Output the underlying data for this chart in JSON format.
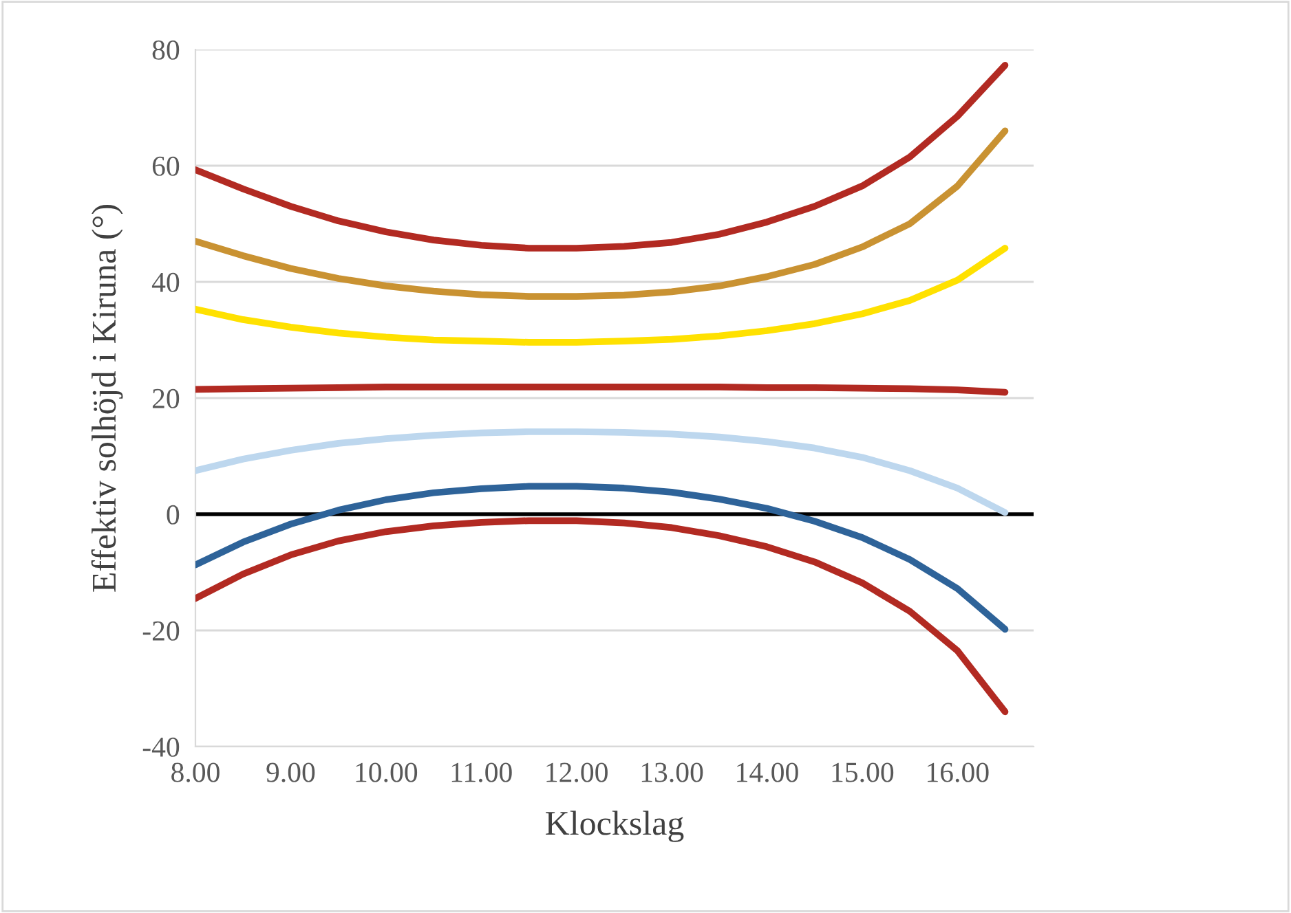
{
  "chart_data": {
    "type": "line",
    "xlabel": "Klockslag",
    "ylabel": "Effektiv solhöjd i Kiruna (°)",
    "x": [
      8,
      8.5,
      9,
      9.5,
      10,
      10.5,
      11,
      11.5,
      12,
      12.5,
      13,
      13.5,
      14,
      14.5,
      15,
      15.5,
      16,
      16.5
    ],
    "series": [
      {
        "color": "#b22a22",
        "values": [
          59.3,
          56,
          53,
          50.5,
          48.6,
          47.2,
          46.3,
          45.8,
          45.8,
          46.1,
          46.8,
          48.2,
          50.3,
          53,
          56.5,
          61.5,
          68.5,
          77.3
        ]
      },
      {
        "color": "#c99232",
        "values": [
          47,
          44.5,
          42.3,
          40.6,
          39.3,
          38.4,
          37.8,
          37.5,
          37.5,
          37.7,
          38.3,
          39.3,
          40.9,
          43,
          46,
          50,
          56.5,
          66
        ]
      },
      {
        "color": "#ffe100",
        "values": [
          35.3,
          33.5,
          32.2,
          31.2,
          30.5,
          30,
          29.8,
          29.6,
          29.6,
          29.8,
          30.1,
          30.7,
          31.6,
          32.8,
          34.5,
          36.8,
          40.3,
          45.8
        ]
      },
      {
        "color": "#b22a22",
        "values": [
          21.5,
          21.6,
          21.7,
          21.8,
          21.9,
          21.9,
          21.9,
          21.9,
          21.9,
          21.9,
          21.9,
          21.9,
          21.8,
          21.8,
          21.7,
          21.6,
          21.4,
          21
        ]
      },
      {
        "color": "#bdd7ee",
        "values": [
          7.5,
          9.5,
          11,
          12.2,
          13,
          13.6,
          14,
          14.2,
          14.2,
          14.1,
          13.8,
          13.3,
          12.5,
          11.4,
          9.8,
          7.5,
          4.5,
          0.3
        ]
      },
      {
        "color": "#2e6399",
        "values": [
          -8.7,
          -4.8,
          -1.7,
          0.7,
          2.5,
          3.7,
          4.4,
          4.8,
          4.8,
          4.5,
          3.8,
          2.6,
          1,
          -1.2,
          -4,
          -7.8,
          -12.8,
          -19.8
        ]
      },
      {
        "color": "#b22a22",
        "values": [
          -14.5,
          -10.3,
          -7,
          -4.6,
          -3,
          -2,
          -1.4,
          -1.1,
          -1.1,
          -1.5,
          -2.3,
          -3.7,
          -5.6,
          -8.2,
          -11.8,
          -16.7,
          -23.5,
          -34
        ]
      }
    ],
    "xlim": [
      8,
      16.8
    ],
    "xticks": [
      {
        "value": 8,
        "label": "8.00"
      },
      {
        "value": 9,
        "label": "9.00"
      },
      {
        "value": 10,
        "label": "10.00"
      },
      {
        "value": 11,
        "label": "11.00"
      },
      {
        "value": 12,
        "label": "12.00"
      },
      {
        "value": 13,
        "label": "13.00"
      },
      {
        "value": 14,
        "label": "14.00"
      },
      {
        "value": 15,
        "label": "15.00"
      },
      {
        "value": 16,
        "label": "16.00"
      }
    ],
    "ylim": [
      -40,
      80
    ],
    "yticks": [
      -40,
      -20,
      0,
      20,
      40,
      60,
      80
    ],
    "ref_lines": [
      {
        "axis": "y",
        "value": 0,
        "color": "#000000"
      }
    ],
    "grid": "y",
    "line_style": "solid",
    "marker": "none"
  }
}
